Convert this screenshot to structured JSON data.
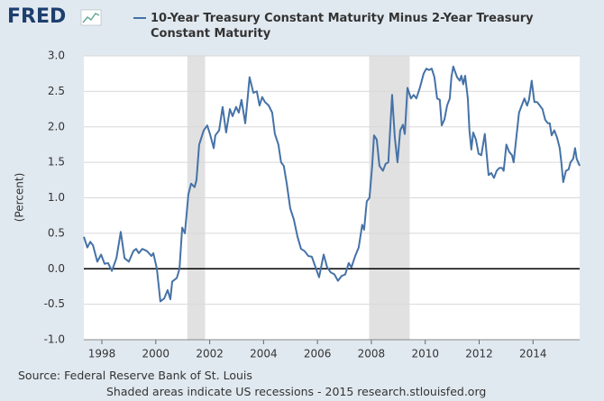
{
  "logo": "FRED",
  "chart_data": {
    "type": "line",
    "title": "10-Year Treasury Constant Maturity Minus 2-Year Treasury Constant Maturity",
    "y_label": "(Percent)",
    "source": "Source: Federal Reserve Bank of St. Louis",
    "note": "Shaded areas indicate US recessions - 2015 research.stlouisfed.org",
    "xlim": [
      1997.33,
      2015.73
    ],
    "xticks": [
      1998,
      2000,
      2002,
      2004,
      2006,
      2008,
      2010,
      2012,
      2014
    ],
    "ylim": [
      -1.0,
      3.0
    ],
    "yticks": [
      {
        "value": -1.0,
        "label": "-1.0"
      },
      {
        "value": -0.5,
        "label": "-0.5"
      },
      {
        "value": 0,
        "label": "0.0"
      },
      {
        "value": 0.5,
        "label": "0.5"
      },
      {
        "value": 1.0,
        "label": "1.0"
      },
      {
        "value": 1.5,
        "label": "1.5"
      },
      {
        "value": 2.0,
        "label": "2.0"
      },
      {
        "value": 2.5,
        "label": "2.5"
      },
      {
        "value": 3.0,
        "label": "3.0"
      }
    ],
    "grid": true,
    "zero_line": true,
    "recessions": [
      [
        2001.17,
        2001.83
      ],
      [
        2007.92,
        2009.42
      ]
    ],
    "recession_color": "#e1e1e1",
    "x": [
      1997.33,
      1997.46,
      1997.57,
      1997.67,
      1997.83,
      1997.97,
      1998.1,
      1998.23,
      1998.37,
      1998.54,
      1998.7,
      1998.84,
      1999.0,
      1999.17,
      1999.27,
      1999.37,
      1999.5,
      1999.67,
      1999.84,
      1999.91,
      2000.04,
      2000.17,
      2000.31,
      2000.44,
      2000.54,
      2000.61,
      2000.78,
      2000.88,
      2000.98,
      2001.08,
      2001.21,
      2001.31,
      2001.44,
      2001.51,
      2001.61,
      2001.78,
      2001.91,
      2002.01,
      2002.15,
      2002.21,
      2002.35,
      2002.48,
      2002.61,
      2002.75,
      2002.85,
      2002.98,
      2003.08,
      2003.18,
      2003.32,
      2003.42,
      2003.48,
      2003.62,
      2003.75,
      2003.85,
      2003.95,
      2004.05,
      2004.19,
      2004.32,
      2004.42,
      2004.55,
      2004.65,
      2004.75,
      2004.86,
      2004.99,
      2005.12,
      2005.26,
      2005.39,
      2005.52,
      2005.66,
      2005.79,
      2005.93,
      2006.06,
      2006.23,
      2006.36,
      2006.49,
      2006.63,
      2006.76,
      2006.9,
      2007.03,
      2007.16,
      2007.26,
      2007.4,
      2007.53,
      2007.66,
      2007.73,
      2007.83,
      2007.93,
      2008.03,
      2008.1,
      2008.2,
      2008.3,
      2008.43,
      2008.53,
      2008.63,
      2008.77,
      2008.87,
      2008.97,
      2009.07,
      2009.17,
      2009.24,
      2009.34,
      2009.47,
      2009.57,
      2009.67,
      2009.8,
      2009.94,
      2010.04,
      2010.14,
      2010.24,
      2010.34,
      2010.44,
      2010.54,
      2010.61,
      2010.71,
      2010.81,
      2010.91,
      2010.97,
      2011.04,
      2011.18,
      2011.28,
      2011.34,
      2011.41,
      2011.48,
      2011.58,
      2011.64,
      2011.71,
      2011.78,
      2011.88,
      2011.98,
      2012.08,
      2012.21,
      2012.35,
      2012.45,
      2012.55,
      2012.65,
      2012.75,
      2012.85,
      2012.91,
      2013.01,
      2013.11,
      2013.22,
      2013.28,
      2013.38,
      2013.48,
      2013.58,
      2013.68,
      2013.78,
      2013.85,
      2013.95,
      2014.05,
      2014.15,
      2014.25,
      2014.35,
      2014.45,
      2014.55,
      2014.62,
      2014.69,
      2014.79,
      2014.89,
      2014.99,
      2015.05,
      2015.12,
      2015.22,
      2015.32,
      2015.39,
      2015.49,
      2015.56,
      2015.62,
      2015.73
    ],
    "series": [
      {
        "name": "10-Year Treasury Constant Maturity Minus 2-Year Treasury Constant Maturity",
        "color": "#4572a7",
        "values": [
          0.45,
          0.3,
          0.38,
          0.33,
          0.1,
          0.2,
          0.07,
          0.08,
          -0.03,
          0.15,
          0.52,
          0.15,
          0.1,
          0.25,
          0.28,
          0.22,
          0.28,
          0.25,
          0.18,
          0.22,
          0.0,
          -0.46,
          -0.42,
          -0.3,
          -0.43,
          -0.18,
          -0.13,
          0.0,
          0.58,
          0.5,
          1.05,
          1.2,
          1.15,
          1.25,
          1.75,
          1.95,
          2.02,
          1.9,
          1.7,
          1.88,
          1.95,
          2.28,
          1.92,
          2.25,
          2.15,
          2.28,
          2.2,
          2.38,
          2.05,
          2.45,
          2.7,
          2.48,
          2.5,
          2.3,
          2.42,
          2.35,
          2.3,
          2.2,
          1.9,
          1.75,
          1.5,
          1.45,
          1.2,
          0.85,
          0.7,
          0.45,
          0.28,
          0.25,
          0.18,
          0.17,
          0.02,
          -0.12,
          0.2,
          0.02,
          -0.05,
          -0.08,
          -0.17,
          -0.1,
          -0.08,
          0.08,
          0.02,
          0.18,
          0.3,
          0.62,
          0.55,
          0.95,
          1.0,
          1.45,
          1.88,
          1.82,
          1.45,
          1.38,
          1.48,
          1.5,
          2.45,
          1.85,
          1.5,
          1.95,
          2.03,
          1.9,
          2.55,
          2.4,
          2.45,
          2.4,
          2.55,
          2.75,
          2.82,
          2.8,
          2.82,
          2.7,
          2.4,
          2.38,
          2.02,
          2.1,
          2.3,
          2.4,
          2.7,
          2.85,
          2.7,
          2.65,
          2.72,
          2.6,
          2.72,
          2.4,
          1.95,
          1.68,
          1.92,
          1.82,
          1.62,
          1.6,
          1.9,
          1.32,
          1.35,
          1.28,
          1.38,
          1.42,
          1.42,
          1.38,
          1.75,
          1.65,
          1.6,
          1.5,
          1.85,
          2.2,
          2.3,
          2.4,
          2.3,
          2.38,
          2.65,
          2.35,
          2.35,
          2.3,
          2.25,
          2.1,
          2.05,
          2.05,
          1.88,
          1.95,
          1.85,
          1.7,
          1.5,
          1.22,
          1.38,
          1.4,
          1.5,
          1.55,
          1.7,
          1.55,
          1.45
        ]
      }
    ]
  }
}
